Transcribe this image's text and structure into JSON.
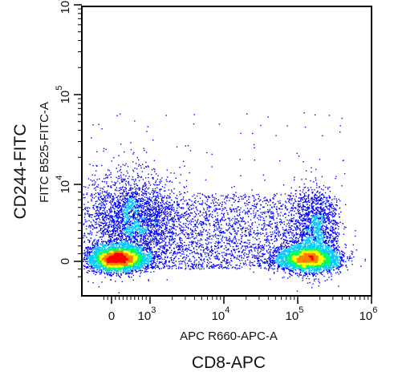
{
  "chart_data": {
    "type": "scatter",
    "plot_style": "flow-cytometry pseudocolor density dot plot",
    "x_scale": "biexponential (linear near 0, log10 above ~10^3)",
    "y_scale": "biexponential (linear near 0, log10 above ~10^3)",
    "xlim": [
      -300,
      1000000
    ],
    "ylim": [
      -300,
      100000000
    ],
    "xlabel_inner": "APC R660-APC-A",
    "xlabel_outer": "CD8-APC",
    "ylabel_inner": "FITC B525-FITC-A",
    "ylabel_outer": "CD244-FITC",
    "x_ticks": [
      {
        "value": 0,
        "label": "0"
      },
      {
        "value": 1000,
        "base": "10",
        "exp": "3"
      },
      {
        "value": 10000,
        "base": "10",
        "exp": "4"
      },
      {
        "value": 100000,
        "base": "10",
        "exp": "5"
      },
      {
        "value": 1000000,
        "base": "10",
        "exp": "6"
      }
    ],
    "y_ticks": [
      {
        "value": 0,
        "label": "0"
      },
      {
        "value": 10000,
        "base": "10",
        "exp": "4"
      },
      {
        "value": 100000,
        "base": "10",
        "exp": "5"
      },
      {
        "value": 1000000,
        "base": "10",
        "exp": "6"
      }
    ],
    "populations": [
      {
        "name": "CD8-negative CD244-low",
        "x_center": 0,
        "y_center": 0,
        "relative_density": "high"
      },
      {
        "name": "CD8-positive CD244-low",
        "x_center": 150000,
        "y_center": 0,
        "relative_density": "high"
      },
      {
        "name": "CD244-positive spread",
        "x_range": [
          0,
          1000
        ],
        "y_range": [
          1000,
          10000
        ],
        "relative_density": "medium"
      }
    ],
    "density_colors": [
      "#0000ff",
      "#00c8ff",
      "#00ff66",
      "#ffff00",
      "#ff8000",
      "#ff0000"
    ],
    "grid": false,
    "legend": "none"
  }
}
